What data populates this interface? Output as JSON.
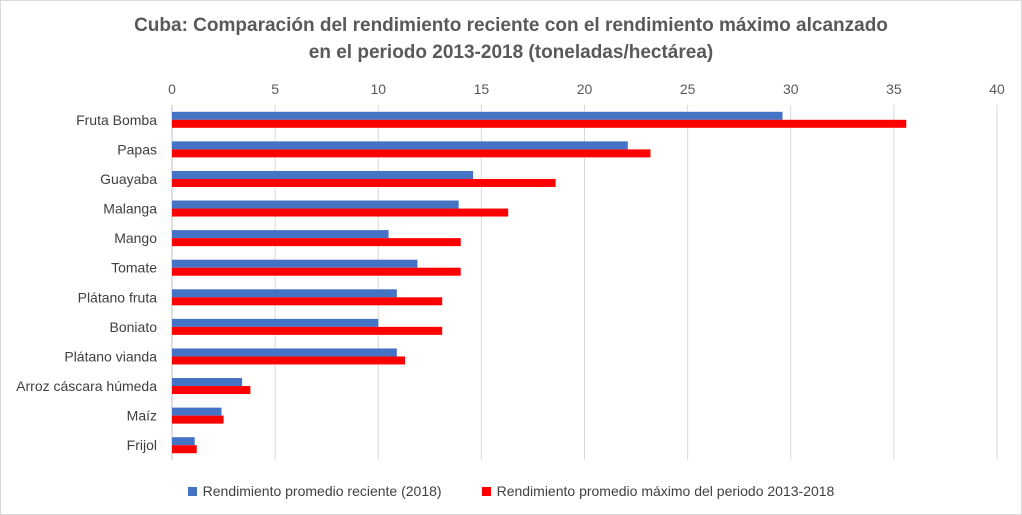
{
  "chart_data": {
    "type": "bar",
    "orientation": "horizontal",
    "title_line1": "Cuba: Comparación del rendimiento reciente con el rendimiento máximo alcanzado",
    "title_line2": "en el periodo 2013-2018 (toneladas/hectárea)",
    "categories": [
      "Fruta Bomba",
      "Papas",
      "Guayaba",
      "Malanga",
      "Mango",
      "Tomate",
      "Plátano fruta",
      "Boniato",
      "Plátano vianda",
      "Arroz cáscara húmeda",
      "Maíz",
      "Frijol"
    ],
    "series": [
      {
        "name": "Rendimiento promedio reciente (2018)",
        "color": "#4472c4",
        "values": [
          29.6,
          22.1,
          14.6,
          13.9,
          10.5,
          11.9,
          10.9,
          10.0,
          10.9,
          3.4,
          2.4,
          1.1
        ]
      },
      {
        "name": "Rendimiento promedio máximo del periodo 2013-2018",
        "color": "#ff0000",
        "values": [
          35.6,
          23.2,
          18.6,
          16.3,
          14.0,
          14.0,
          13.1,
          13.1,
          11.3,
          3.8,
          2.5,
          1.2
        ]
      }
    ],
    "xlim": [
      0,
      40
    ],
    "xticks": [
      "0",
      "5",
      "10",
      "15",
      "20",
      "25",
      "30",
      "35",
      "40"
    ],
    "axis_position": "top",
    "grid": true,
    "legend_position": "bottom"
  }
}
